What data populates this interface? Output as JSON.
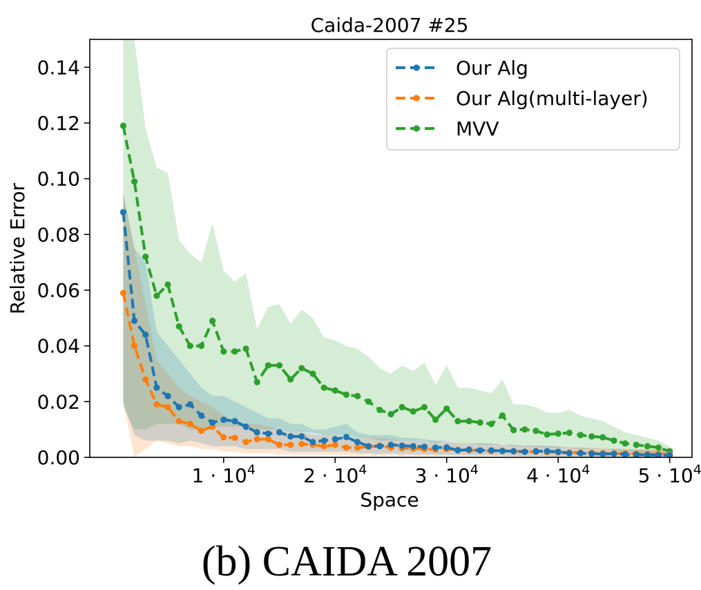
{
  "figure": {
    "caption": "(b) CAIDA 2007"
  },
  "chart_data": {
    "type": "line",
    "title": "Caida-2007 #25",
    "xlabel": "Space",
    "ylabel": "Relative Error",
    "xlim": [
      -2000,
      52000
    ],
    "ylim": [
      0,
      0.15
    ],
    "xticks": [
      {
        "value": 10000,
        "mantissa": "1",
        "exp": "4"
      },
      {
        "value": 20000,
        "mantissa": "2",
        "exp": "4"
      },
      {
        "value": 30000,
        "mantissa": "3",
        "exp": "4"
      },
      {
        "value": 40000,
        "mantissa": "4",
        "exp": "4"
      },
      {
        "value": 50000,
        "mantissa": "5",
        "exp": "4"
      }
    ],
    "yticks": [
      {
        "value": 0.0,
        "label": "0.00"
      },
      {
        "value": 0.02,
        "label": "0.02"
      },
      {
        "value": 0.04,
        "label": "0.04"
      },
      {
        "value": 0.06,
        "label": "0.06"
      },
      {
        "value": 0.08,
        "label": "0.08"
      },
      {
        "value": 0.1,
        "label": "0.10"
      },
      {
        "value": 0.12,
        "label": "0.12"
      },
      {
        "value": 0.14,
        "label": "0.14"
      }
    ],
    "grid": false,
    "legend_position": "top-right",
    "x": [
      1000,
      2000,
      3000,
      4000,
      5000,
      6000,
      7000,
      8000,
      9000,
      10000,
      11000,
      12000,
      13000,
      14000,
      15000,
      16000,
      17000,
      18000,
      19000,
      20000,
      21000,
      22000,
      23000,
      24000,
      25000,
      26000,
      27000,
      28000,
      29000,
      30000,
      31000,
      32000,
      33000,
      34000,
      35000,
      36000,
      37000,
      38000,
      39000,
      40000,
      41000,
      42000,
      43000,
      44000,
      45000,
      46000,
      47000,
      48000,
      49000,
      50000
    ],
    "series": [
      {
        "name": "Our Alg",
        "color": "#1f77b4",
        "values": [
          0.088,
          0.049,
          0.044,
          0.025,
          0.022,
          0.018,
          0.019,
          0.015,
          0.0125,
          0.0135,
          0.013,
          0.011,
          0.009,
          0.0085,
          0.009,
          0.0075,
          0.0075,
          0.0055,
          0.006,
          0.0065,
          0.0073,
          0.0055,
          0.004,
          0.004,
          0.0045,
          0.0042,
          0.004,
          0.0038,
          0.0035,
          0.0036,
          0.0025,
          0.0028,
          0.0025,
          0.0025,
          0.0023,
          0.0022,
          0.002,
          0.0022,
          0.0022,
          0.002,
          0.0015,
          0.0015,
          0.0013,
          0.0012,
          0.0013,
          0.0011,
          0.001,
          0.0009,
          0.0008,
          0.0008
        ],
        "lower": [
          0.02,
          0.008,
          0.006,
          0.006,
          0.006,
          0.005,
          0.006,
          0.005,
          0.004,
          0.004,
          0.004,
          0.003,
          0.003,
          0.003,
          0.003,
          0.002,
          0.002,
          0.002,
          0.002,
          0.002,
          0.002,
          0.0015,
          0.0015,
          0.0012,
          0.0015,
          0.0012,
          0.0012,
          0.001,
          0.001,
          0.001,
          0.0008,
          0.0008,
          0.0008,
          0.0007,
          0.0006,
          0.0005,
          0.0004,
          0.0004,
          0.0003,
          0.0002,
          0.0002,
          0.0001,
          0.0,
          0.0,
          0.0,
          0.0,
          0.0,
          0.0,
          0.0,
          0.0
        ],
        "upper": [
          0.095,
          0.075,
          0.07,
          0.045,
          0.04,
          0.035,
          0.03,
          0.025,
          0.022,
          0.022,
          0.02,
          0.018,
          0.016,
          0.014,
          0.014,
          0.012,
          0.012,
          0.01,
          0.01,
          0.011,
          0.012,
          0.009,
          0.008,
          0.008,
          0.008,
          0.007,
          0.007,
          0.0065,
          0.006,
          0.006,
          0.005,
          0.005,
          0.005,
          0.005,
          0.0048,
          0.0045,
          0.0042,
          0.0042,
          0.0042,
          0.004,
          0.0035,
          0.0035,
          0.0032,
          0.003,
          0.003,
          0.0028,
          0.0027,
          0.0026,
          0.0025,
          0.0025
        ]
      },
      {
        "name": "Our Alg(multi-layer)",
        "color": "#ff7f0e",
        "values": [
          0.059,
          0.04,
          0.028,
          0.019,
          0.018,
          0.013,
          0.012,
          0.0095,
          0.011,
          0.0072,
          0.007,
          0.0055,
          0.0065,
          0.0065,
          0.0045,
          0.0045,
          0.0048,
          0.0045,
          0.004,
          0.0045,
          0.0035,
          0.0035,
          0.0038,
          0.0042,
          0.0035,
          0.0033,
          0.0032,
          0.003,
          0.0028,
          0.003,
          0.0027,
          0.0025,
          0.0025,
          0.0023,
          0.0023,
          0.0022,
          0.002,
          0.002,
          0.0019,
          0.0018,
          0.0017,
          0.0017,
          0.0016,
          0.0015,
          0.0014,
          0.0014,
          0.0013,
          0.0012,
          0.0012,
          0.0011
        ],
        "lower": [
          0.02,
          0.0,
          0.003,
          0.006,
          0.005,
          0.004,
          0.004,
          0.003,
          0.003,
          0.002,
          0.002,
          0.0015,
          0.0015,
          0.0015,
          0.001,
          0.001,
          0.001,
          0.001,
          0.001,
          0.001,
          0.0008,
          0.0008,
          0.0008,
          0.0008,
          0.0007,
          0.0007,
          0.0006,
          0.0006,
          0.0005,
          0.0005,
          0.0005,
          0.0004,
          0.0004,
          0.0004,
          0.0004,
          0.0003,
          0.0003,
          0.0003,
          0.0003,
          0.0002,
          0.0002,
          0.0002,
          0.0002,
          0.0002,
          0.0002,
          0.0001,
          0.0001,
          0.0001,
          0.0001,
          0.0001
        ],
        "upper": [
          0.095,
          0.075,
          0.055,
          0.035,
          0.03,
          0.025,
          0.022,
          0.02,
          0.018,
          0.015,
          0.013,
          0.012,
          0.012,
          0.011,
          0.01,
          0.009,
          0.009,
          0.008,
          0.008,
          0.008,
          0.007,
          0.007,
          0.007,
          0.007,
          0.0065,
          0.006,
          0.006,
          0.0058,
          0.0055,
          0.0055,
          0.0052,
          0.005,
          0.005,
          0.0048,
          0.0046,
          0.0044,
          0.0042,
          0.0042,
          0.004,
          0.0038,
          0.0036,
          0.0035,
          0.0034,
          0.0033,
          0.0032,
          0.0031,
          0.003,
          0.003,
          0.0029,
          0.0028
        ]
      },
      {
        "name": "MVV",
        "color": "#2ca02c",
        "values": [
          0.119,
          0.099,
          0.072,
          0.058,
          0.062,
          0.047,
          0.04,
          0.04,
          0.049,
          0.038,
          0.038,
          0.039,
          0.027,
          0.033,
          0.033,
          0.028,
          0.032,
          0.03,
          0.025,
          0.024,
          0.0225,
          0.022,
          0.02,
          0.017,
          0.0155,
          0.018,
          0.0165,
          0.018,
          0.0135,
          0.0175,
          0.013,
          0.013,
          0.0125,
          0.012,
          0.015,
          0.0098,
          0.01,
          0.0095,
          0.0082,
          0.0085,
          0.0088,
          0.008,
          0.0075,
          0.0072,
          0.006,
          0.005,
          0.0045,
          0.004,
          0.0035,
          0.0022
        ],
        "lower": [
          0.018,
          0.01,
          0.01,
          0.012,
          0.012,
          0.012,
          0.01,
          0.01,
          0.011,
          0.011,
          0.011,
          0.011,
          0.01,
          0.01,
          0.01,
          0.009,
          0.009,
          0.009,
          0.008,
          0.008,
          0.008,
          0.007,
          0.007,
          0.006,
          0.006,
          0.006,
          0.006,
          0.006,
          0.005,
          0.006,
          0.005,
          0.005,
          0.0045,
          0.0045,
          0.005,
          0.004,
          0.004,
          0.0037,
          0.0035,
          0.0035,
          0.0035,
          0.003,
          0.003,
          0.003,
          0.0025,
          0.002,
          0.0018,
          0.0015,
          0.0012,
          0.001
        ],
        "upper": [
          0.15,
          0.15,
          0.118,
          0.104,
          0.102,
          0.078,
          0.073,
          0.07,
          0.084,
          0.067,
          0.063,
          0.066,
          0.046,
          0.054,
          0.055,
          0.048,
          0.053,
          0.05,
          0.043,
          0.042,
          0.04,
          0.039,
          0.036,
          0.032,
          0.03,
          0.033,
          0.031,
          0.034,
          0.026,
          0.033,
          0.025,
          0.025,
          0.024,
          0.023,
          0.028,
          0.019,
          0.019,
          0.018,
          0.016,
          0.016,
          0.017,
          0.015,
          0.014,
          0.013,
          0.011,
          0.009,
          0.008,
          0.007,
          0.006,
          0.004
        ]
      }
    ]
  }
}
